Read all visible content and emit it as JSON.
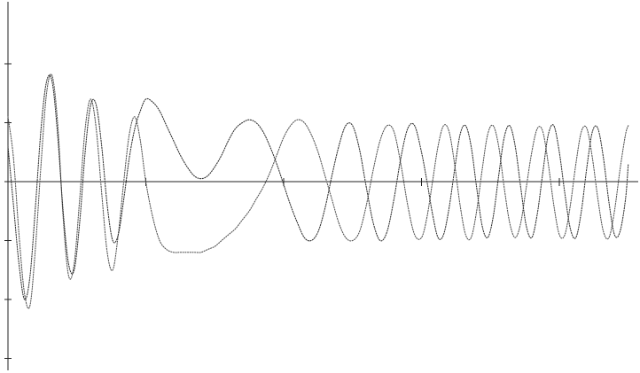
{
  "chart_data": {
    "type": "line",
    "title": "",
    "xlabel": "",
    "ylabel": "",
    "grid": false,
    "legend": "none",
    "xlim": [
      0,
      4.5
    ],
    "ylim": [
      -3,
      2.4
    ],
    "x_ticks": [
      1,
      2,
      3,
      4
    ],
    "y_ticks": [
      -3,
      -2,
      -1,
      0,
      1,
      2
    ],
    "series": [
      {
        "color": "#555555",
        "style": "dotted",
        "x": [
          0.0,
          0.04,
          0.08,
          0.12,
          0.16,
          0.2,
          0.24,
          0.28,
          0.32,
          0.36,
          0.4,
          0.44,
          0.48,
          0.52,
          0.56,
          0.6,
          0.64,
          0.68,
          0.72,
          0.76,
          0.8,
          0.84,
          0.88,
          0.92,
          0.96,
          1.0,
          1.05,
          1.1,
          1.15,
          1.2,
          1.25,
          1.3,
          1.35,
          1.4,
          1.45,
          1.5,
          1.55,
          1.6,
          1.65,
          1.7,
          1.75,
          1.8,
          1.85,
          1.9,
          1.95,
          2.0,
          2.05,
          2.1,
          2.15,
          2.2,
          2.25,
          2.3,
          2.35,
          2.4,
          2.45,
          2.5,
          2.55,
          2.6,
          2.65,
          2.7,
          2.75,
          2.8,
          2.85,
          2.9,
          2.95,
          3.0,
          3.04,
          3.08,
          3.12,
          3.16,
          3.2,
          3.24,
          3.28,
          3.32,
          3.36,
          3.4,
          3.44,
          3.48,
          3.52,
          3.56,
          3.6,
          3.64,
          3.68,
          3.72,
          3.76,
          3.8,
          3.84,
          3.88,
          3.92,
          3.96,
          4.0,
          4.04,
          4.08,
          4.12,
          4.16,
          4.2,
          4.24,
          4.28,
          4.32,
          4.36,
          4.4,
          4.44,
          4.48,
          4.5
        ],
        "y": [
          1.1,
          0.4,
          -0.9,
          -1.9,
          -2.1,
          -1.1,
          0.3,
          1.5,
          1.8,
          1.0,
          -0.6,
          -1.6,
          -1.4,
          -0.3,
          0.9,
          1.4,
          0.9,
          -0.2,
          -1.2,
          -1.5,
          -0.9,
          0.0,
          0.8,
          1.1,
          0.7,
          0.0,
          -0.6,
          -1.0,
          -1.15,
          -1.2,
          -1.2,
          -1.2,
          -1.2,
          -1.2,
          -1.15,
          -1.1,
          -1.0,
          -0.9,
          -0.8,
          -0.65,
          -0.5,
          -0.3,
          -0.1,
          0.15,
          0.45,
          0.75,
          0.95,
          1.05,
          1.0,
          0.8,
          0.5,
          0.1,
          -0.3,
          -0.7,
          -0.95,
          -1.0,
          -0.85,
          -0.4,
          0.2,
          0.7,
          0.95,
          0.85,
          0.3,
          -0.4,
          -0.9,
          -0.95,
          -0.6,
          0.0,
          0.6,
          0.95,
          0.85,
          0.3,
          -0.4,
          -0.9,
          -0.95,
          -0.5,
          0.2,
          0.8,
          0.95,
          0.6,
          -0.1,
          -0.7,
          -0.95,
          -0.7,
          -0.1,
          0.5,
          0.9,
          0.85,
          0.3,
          -0.4,
          -0.9,
          -0.9,
          -0.4,
          0.3,
          0.85,
          0.9,
          0.4,
          -0.3,
          -0.85,
          -0.95,
          -0.5,
          0.2,
          0.8,
          0.95
        ]
      },
      {
        "color": "#333333",
        "style": "dotted",
        "x": [
          0.0,
          0.04,
          0.08,
          0.12,
          0.16,
          0.2,
          0.24,
          0.28,
          0.32,
          0.36,
          0.4,
          0.44,
          0.48,
          0.52,
          0.56,
          0.6,
          0.64,
          0.68,
          0.72,
          0.76,
          0.8,
          0.84,
          0.88,
          0.92,
          0.96,
          1.0,
          1.05,
          1.1,
          1.15,
          1.2,
          1.25,
          1.3,
          1.35,
          1.4,
          1.45,
          1.5,
          1.55,
          1.6,
          1.65,
          1.7,
          1.75,
          1.8,
          1.85,
          1.9,
          1.95,
          2.0,
          2.05,
          2.1,
          2.15,
          2.2,
          2.25,
          2.3,
          2.35,
          2.4,
          2.45,
          2.5,
          2.55,
          2.6,
          2.65,
          2.7,
          2.75,
          2.8,
          2.85,
          2.9,
          2.95,
          3.0,
          3.04,
          3.08,
          3.12,
          3.16,
          3.2,
          3.24,
          3.28,
          3.32,
          3.36,
          3.4,
          3.44,
          3.48,
          3.52,
          3.56,
          3.6,
          3.64,
          3.68,
          3.72,
          3.76,
          3.8,
          3.84,
          3.88,
          3.92,
          3.96,
          4.0,
          4.04,
          4.08,
          4.12,
          4.16,
          4.2,
          4.24,
          4.28,
          4.32,
          4.36,
          4.4,
          4.44,
          4.48,
          4.5
        ],
        "y": [
          0.6,
          -0.4,
          -1.4,
          -2.0,
          -1.6,
          -0.4,
          0.9,
          1.7,
          1.7,
          0.8,
          -0.5,
          -1.4,
          -1.5,
          -0.7,
          0.5,
          1.3,
          1.3,
          0.6,
          -0.4,
          -1.0,
          -0.9,
          -0.3,
          0.4,
          0.9,
          1.2,
          1.4,
          1.35,
          1.2,
          0.95,
          0.7,
          0.45,
          0.25,
          0.1,
          0.05,
          0.1,
          0.25,
          0.45,
          0.7,
          0.9,
          1.0,
          1.05,
          1.0,
          0.85,
          0.6,
          0.3,
          -0.05,
          -0.4,
          -0.7,
          -0.95,
          -1.0,
          -0.85,
          -0.45,
          0.1,
          0.6,
          0.95,
          0.95,
          0.55,
          -0.1,
          -0.7,
          -1.0,
          -0.85,
          -0.3,
          0.4,
          0.9,
          0.95,
          0.5,
          0.0,
          -0.55,
          -0.95,
          -0.9,
          -0.45,
          0.2,
          0.8,
          0.95,
          0.6,
          -0.1,
          -0.75,
          -0.95,
          -0.6,
          0.1,
          0.75,
          0.95,
          0.6,
          -0.1,
          -0.75,
          -0.95,
          -0.55,
          0.15,
          0.8,
          0.95,
          0.5,
          -0.2,
          -0.8,
          -0.95,
          -0.5,
          0.25,
          0.85,
          0.9,
          0.4,
          -0.35,
          -0.9,
          -0.85,
          -0.3,
          0.3
        ]
      }
    ]
  }
}
